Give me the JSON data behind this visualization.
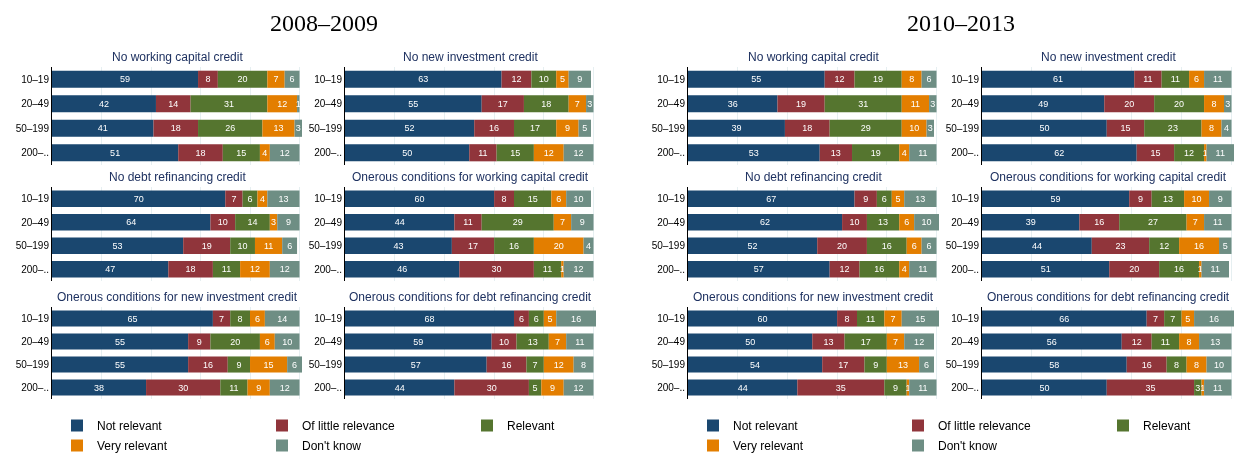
{
  "chart_data": [
    {
      "type": "bar",
      "orientation": "horizontal",
      "stacked": true,
      "title": "No working capital credit",
      "annotations": [
        "2008–2009"
      ],
      "categories": [
        "10–19",
        "20–49",
        "50–199",
        "200–.."
      ],
      "xlim": [
        0,
        101
      ],
      "xticks": [
        {
          "value": 0,
          "label": null
        },
        {
          "value": 20,
          "label": null
        },
        {
          "value": 40,
          "label": null
        },
        {
          "value": 60,
          "label": null
        },
        {
          "value": 80,
          "label": null
        },
        {
          "value": 100,
          "label": null
        }
      ],
      "grid": "x",
      "tick_labels": "y",
      "data_labels": true,
      "series": [
        {
          "color": "#1a476f",
          "values": [
            59,
            42,
            41,
            51
          ]
        },
        {
          "color": "#90353b",
          "values": [
            8,
            14,
            18,
            18
          ]
        },
        {
          "color": "#55752f",
          "values": [
            20,
            31,
            26,
            15
          ]
        },
        {
          "color": "#e37e00",
          "values": [
            7,
            12,
            13,
            4
          ]
        },
        {
          "color": "#6e8e84",
          "values": [
            6,
            1,
            3,
            12
          ]
        }
      ]
    },
    {
      "type": "bar",
      "orientation": "horizontal",
      "stacked": true,
      "title": "No new investment credit",
      "categories": [
        "10–19",
        "20–49",
        "50–199",
        "200–.."
      ],
      "xlim": [
        0,
        101
      ],
      "xticks": [
        {
          "value": 0,
          "label": null
        },
        {
          "value": 20,
          "label": null
        },
        {
          "value": 40,
          "label": null
        },
        {
          "value": 60,
          "label": null
        },
        {
          "value": 80,
          "label": null
        },
        {
          "value": 100,
          "label": null
        }
      ],
      "grid": "x",
      "tick_labels": "y",
      "data_labels": true,
      "series": [
        {
          "color": "#1a476f",
          "values": [
            63,
            55,
            52,
            50
          ]
        },
        {
          "color": "#90353b",
          "values": [
            12,
            17,
            16,
            11
          ]
        },
        {
          "color": "#55752f",
          "values": [
            10,
            18,
            17,
            15
          ]
        },
        {
          "color": "#e37e00",
          "values": [
            5,
            7,
            9,
            12
          ]
        },
        {
          "color": "#6e8e84",
          "values": [
            9,
            3,
            5,
            12
          ]
        }
      ]
    },
    {
      "type": "bar",
      "orientation": "horizontal",
      "stacked": true,
      "title": "No debt refinancing credit",
      "categories": [
        "10–19",
        "20–49",
        "50–199",
        "200–.."
      ],
      "xlim": [
        0,
        101
      ],
      "xticks": [
        {
          "value": 0,
          "label": null
        },
        {
          "value": 20,
          "label": null
        },
        {
          "value": 40,
          "label": null
        },
        {
          "value": 60,
          "label": null
        },
        {
          "value": 80,
          "label": null
        },
        {
          "value": 100,
          "label": null
        }
      ],
      "grid": "x",
      "tick_labels": "y",
      "data_labels": true,
      "series": [
        {
          "color": "#1a476f",
          "values": [
            70,
            64,
            53,
            47
          ]
        },
        {
          "color": "#90353b",
          "values": [
            7,
            10,
            19,
            18
          ]
        },
        {
          "color": "#55752f",
          "values": [
            6,
            14,
            10,
            11
          ]
        },
        {
          "color": "#e37e00",
          "values": [
            4,
            3,
            11,
            12
          ]
        },
        {
          "color": "#6e8e84",
          "values": [
            13,
            9,
            6,
            12
          ]
        }
      ]
    },
    {
      "type": "bar",
      "orientation": "horizontal",
      "stacked": true,
      "title": "Onerous conditions for working capital credit",
      "categories": [
        "10–19",
        "20–49",
        "50–199",
        "200–.."
      ],
      "xlim": [
        0,
        101
      ],
      "xticks": [
        {
          "value": 0,
          "label": null
        },
        {
          "value": 20,
          "label": null
        },
        {
          "value": 40,
          "label": null
        },
        {
          "value": 60,
          "label": null
        },
        {
          "value": 80,
          "label": null
        },
        {
          "value": 100,
          "label": null
        }
      ],
      "grid": "x",
      "tick_labels": "y",
      "data_labels": true,
      "series": [
        {
          "color": "#1a476f",
          "values": [
            60,
            44,
            43,
            46
          ]
        },
        {
          "color": "#90353b",
          "values": [
            8,
            11,
            17,
            30
          ]
        },
        {
          "color": "#55752f",
          "values": [
            15,
            29,
            16,
            11
          ]
        },
        {
          "color": "#e37e00",
          "values": [
            6,
            7,
            20,
            1
          ]
        },
        {
          "color": "#6e8e84",
          "values": [
            10,
            9,
            4,
            12
          ]
        }
      ]
    },
    {
      "type": "bar",
      "orientation": "horizontal",
      "stacked": true,
      "title": "Onerous conditions for new investment credit",
      "categories": [
        "10–19",
        "20–49",
        "50–199",
        "200–.."
      ],
      "xlim": [
        0,
        101
      ],
      "xticks": [
        {
          "value": 0,
          "label": null
        },
        {
          "value": 20,
          "label": null
        },
        {
          "value": 40,
          "label": null
        },
        {
          "value": 60,
          "label": null
        },
        {
          "value": 80,
          "label": null
        },
        {
          "value": 100,
          "label": null
        }
      ],
      "grid": "x",
      "tick_labels": "y",
      "data_labels": true,
      "legend": "bottom",
      "series": [
        {
          "name": "Not relevant",
          "color": "#1a476f",
          "values": [
            65,
            55,
            55,
            38
          ]
        },
        {
          "name": "Of little relevance",
          "color": "#90353b",
          "values": [
            7,
            9,
            16,
            30
          ]
        },
        {
          "name": "Relevant",
          "color": "#55752f",
          "values": [
            8,
            20,
            9,
            11
          ]
        },
        {
          "name": "Very relevant",
          "color": "#e37e00",
          "values": [
            6,
            6,
            15,
            9
          ]
        },
        {
          "name": "Don't know",
          "color": "#6e8e84",
          "values": [
            14,
            10,
            6,
            12
          ]
        }
      ]
    },
    {
      "type": "bar",
      "orientation": "horizontal",
      "stacked": true,
      "title": "Onerous conditions for debt refinancing credit",
      "categories": [
        "10–19",
        "20–49",
        "50–199",
        "200–.."
      ],
      "xlim": [
        0,
        101
      ],
      "xticks": [
        {
          "value": 0,
          "label": null
        },
        {
          "value": 20,
          "label": null
        },
        {
          "value": 40,
          "label": null
        },
        {
          "value": 60,
          "label": null
        },
        {
          "value": 80,
          "label": null
        },
        {
          "value": 100,
          "label": null
        }
      ],
      "grid": "x",
      "tick_labels": "y",
      "data_labels": true,
      "series": [
        {
          "color": "#1a476f",
          "values": [
            68,
            59,
            57,
            44
          ]
        },
        {
          "color": "#90353b",
          "values": [
            6,
            10,
            16,
            30
          ]
        },
        {
          "color": "#55752f",
          "values": [
            6,
            13,
            7,
            5
          ]
        },
        {
          "color": "#e37e00",
          "values": [
            5,
            7,
            12,
            9
          ]
        },
        {
          "color": "#6e8e84",
          "values": [
            16,
            11,
            8,
            12
          ]
        }
      ]
    },
    {
      "type": "bar",
      "orientation": "horizontal",
      "stacked": true,
      "title": "No working capital credit",
      "annotations": [
        "2010–2013"
      ],
      "categories": [
        "10–19",
        "20–49",
        "50–199",
        "200–.."
      ],
      "xlim": [
        0,
        101
      ],
      "xticks": [
        {
          "value": 0,
          "label": null
        },
        {
          "value": 20,
          "label": null
        },
        {
          "value": 40,
          "label": null
        },
        {
          "value": 60,
          "label": null
        },
        {
          "value": 80,
          "label": null
        },
        {
          "value": 100,
          "label": null
        }
      ],
      "grid": "x",
      "tick_labels": "y",
      "data_labels": true,
      "series": [
        {
          "color": "#1a476f",
          "values": [
            55,
            36,
            39,
            53
          ]
        },
        {
          "color": "#90353b",
          "values": [
            12,
            19,
            18,
            13
          ]
        },
        {
          "color": "#55752f",
          "values": [
            19,
            31,
            29,
            19
          ]
        },
        {
          "color": "#e37e00",
          "values": [
            8,
            11,
            10,
            4
          ]
        },
        {
          "color": "#6e8e84",
          "values": [
            6,
            3,
            3,
            11
          ]
        }
      ]
    },
    {
      "type": "bar",
      "orientation": "horizontal",
      "stacked": true,
      "title": "No new investment credit",
      "categories": [
        "10–19",
        "20–49",
        "50–199",
        "200–.."
      ],
      "xlim": [
        0,
        101
      ],
      "xticks": [
        {
          "value": 0,
          "label": null
        },
        {
          "value": 20,
          "label": null
        },
        {
          "value": 40,
          "label": null
        },
        {
          "value": 60,
          "label": null
        },
        {
          "value": 80,
          "label": null
        },
        {
          "value": 100,
          "label": null
        }
      ],
      "grid": "x",
      "tick_labels": "y",
      "data_labels": true,
      "series": [
        {
          "color": "#1a476f",
          "values": [
            61,
            49,
            50,
            62
          ]
        },
        {
          "color": "#90353b",
          "values": [
            11,
            20,
            15,
            15
          ]
        },
        {
          "color": "#55752f",
          "values": [
            11,
            20,
            23,
            12
          ]
        },
        {
          "color": "#e37e00",
          "values": [
            6,
            8,
            8,
            1
          ]
        },
        {
          "color": "#6e8e84",
          "values": [
            11,
            3,
            4,
            11
          ]
        }
      ]
    },
    {
      "type": "bar",
      "orientation": "horizontal",
      "stacked": true,
      "title": "No debt refinancing credit",
      "categories": [
        "10–19",
        "20–49",
        "50–199",
        "200–.."
      ],
      "xlim": [
        0,
        101
      ],
      "xticks": [
        {
          "value": 0,
          "label": null
        },
        {
          "value": 20,
          "label": null
        },
        {
          "value": 40,
          "label": null
        },
        {
          "value": 60,
          "label": null
        },
        {
          "value": 80,
          "label": null
        },
        {
          "value": 100,
          "label": null
        }
      ],
      "grid": "x",
      "tick_labels": "y",
      "data_labels": true,
      "series": [
        {
          "color": "#1a476f",
          "values": [
            67,
            62,
            52,
            57
          ]
        },
        {
          "color": "#90353b",
          "values": [
            9,
            10,
            20,
            12
          ]
        },
        {
          "color": "#55752f",
          "values": [
            6,
            13,
            16,
            16
          ]
        },
        {
          "color": "#e37e00",
          "values": [
            5,
            6,
            6,
            4
          ]
        },
        {
          "color": "#6e8e84",
          "values": [
            13,
            10,
            6,
            11
          ]
        }
      ]
    },
    {
      "type": "bar",
      "orientation": "horizontal",
      "stacked": true,
      "title": "Onerous conditions for working capital credit",
      "categories": [
        "10–19",
        "20–49",
        "50–199",
        "200–.."
      ],
      "xlim": [
        0,
        101
      ],
      "xticks": [
        {
          "value": 0,
          "label": null
        },
        {
          "value": 20,
          "label": null
        },
        {
          "value": 40,
          "label": null
        },
        {
          "value": 60,
          "label": null
        },
        {
          "value": 80,
          "label": null
        },
        {
          "value": 100,
          "label": null
        }
      ],
      "grid": "x",
      "tick_labels": "y",
      "data_labels": true,
      "series": [
        {
          "color": "#1a476f",
          "values": [
            59,
            39,
            44,
            51
          ]
        },
        {
          "color": "#90353b",
          "values": [
            9,
            16,
            23,
            20
          ]
        },
        {
          "color": "#55752f",
          "values": [
            13,
            27,
            12,
            16
          ]
        },
        {
          "color": "#e37e00",
          "values": [
            10,
            7,
            16,
            1
          ]
        },
        {
          "color": "#6e8e84",
          "values": [
            9,
            11,
            5,
            11
          ]
        }
      ]
    },
    {
      "type": "bar",
      "orientation": "horizontal",
      "stacked": true,
      "title": "Onerous conditions for new investment credit",
      "categories": [
        "10–19",
        "20–49",
        "50–199",
        "200–.."
      ],
      "xlim": [
        0,
        101
      ],
      "xticks": [
        {
          "value": 0,
          "label": null
        },
        {
          "value": 20,
          "label": null
        },
        {
          "value": 40,
          "label": null
        },
        {
          "value": 60,
          "label": null
        },
        {
          "value": 80,
          "label": null
        },
        {
          "value": 100,
          "label": null
        }
      ],
      "grid": "x",
      "tick_labels": "y",
      "data_labels": true,
      "legend": "bottom",
      "series": [
        {
          "name": "Not relevant",
          "color": "#1a476f",
          "values": [
            60,
            50,
            54,
            44
          ]
        },
        {
          "name": "Of little relevance",
          "color": "#90353b",
          "values": [
            8,
            13,
            17,
            35
          ]
        },
        {
          "name": "Relevant",
          "color": "#55752f",
          "values": [
            11,
            17,
            9,
            9
          ]
        },
        {
          "name": "Very relevant",
          "color": "#e37e00",
          "values": [
            7,
            7,
            13,
            1
          ]
        },
        {
          "name": "Don't know",
          "color": "#6e8e84",
          "values": [
            15,
            12,
            6,
            11
          ]
        }
      ]
    },
    {
      "type": "bar",
      "orientation": "horizontal",
      "stacked": true,
      "title": "Onerous conditions for debt refinancing credit",
      "categories": [
        "10–19",
        "20–49",
        "50–199",
        "200–.."
      ],
      "xlim": [
        0,
        101
      ],
      "xticks": [
        {
          "value": 0,
          "label": null
        },
        {
          "value": 20,
          "label": null
        },
        {
          "value": 40,
          "label": null
        },
        {
          "value": 60,
          "label": null
        },
        {
          "value": 80,
          "label": null
        },
        {
          "value": 100,
          "label": null
        }
      ],
      "grid": "x",
      "tick_labels": "y",
      "data_labels": true,
      "series": [
        {
          "color": "#1a476f",
          "values": [
            66,
            56,
            58,
            50
          ]
        },
        {
          "color": "#90353b",
          "values": [
            7,
            12,
            16,
            35
          ]
        },
        {
          "color": "#55752f",
          "values": [
            7,
            11,
            8,
            3
          ]
        },
        {
          "color": "#e37e00",
          "values": [
            5,
            8,
            8,
            1
          ]
        },
        {
          "color": "#6e8e84",
          "values": [
            16,
            13,
            10,
            11
          ]
        }
      ]
    }
  ]
}
